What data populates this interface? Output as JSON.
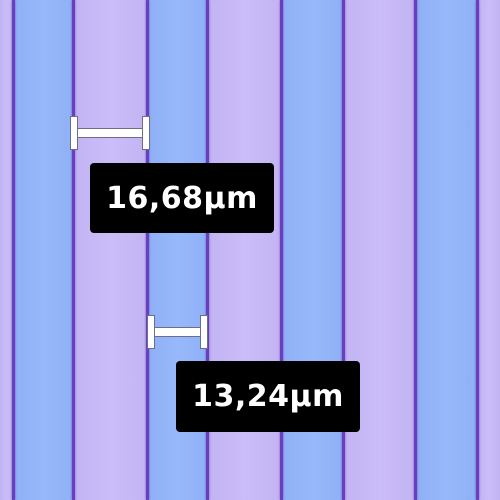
{
  "measurements": [
    {
      "label": "16,68µm"
    },
    {
      "label": "13,24µm"
    }
  ],
  "colors": {
    "stripe_blue": "#93b4f8",
    "stripe_lilac": "#c6b8f6",
    "edge": "#6a3fbf",
    "label_background": "#000000",
    "label_text": "#ffffff"
  }
}
